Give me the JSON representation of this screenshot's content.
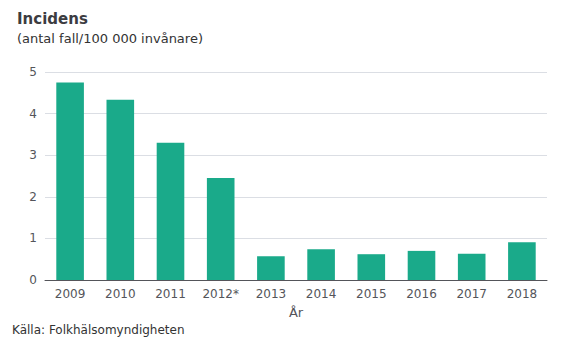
{
  "chart_data": {
    "type": "bar",
    "title": "Incidens",
    "subtitle": "(antal fall/100 000 invånare)",
    "xlabel": "År",
    "annotations": [
      "Källa: Folkhälsomyndigheten"
    ],
    "categories": [
      "2009",
      "2010",
      "2011",
      "2012*",
      "2013",
      "2014",
      "2015",
      "2016",
      "2017",
      "2018"
    ],
    "values": [
      4.75,
      4.33,
      3.3,
      2.45,
      0.57,
      0.74,
      0.62,
      0.7,
      0.63,
      0.91
    ],
    "color": "#1aaa8a",
    "ylim": [
      0,
      5
    ],
    "yticks": [
      0,
      1,
      2,
      3,
      4,
      5
    ],
    "grid": true
  }
}
